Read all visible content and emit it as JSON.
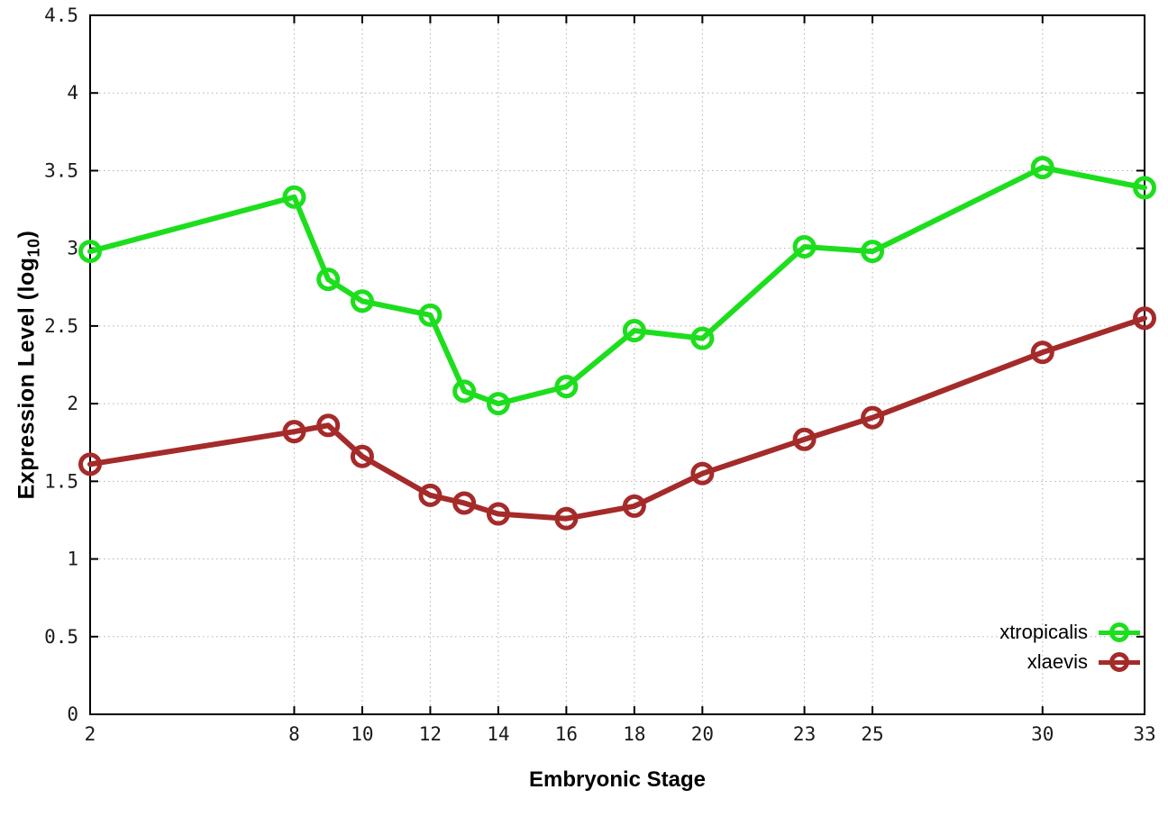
{
  "chart_data": {
    "type": "line",
    "title": "",
    "xlabel": "Embryonic Stage",
    "ylabel": "Expression Level (log10)",
    "ylabel_parts": {
      "base": "Expression Level (log",
      "sub": "10",
      "close": ")"
    },
    "xlim": [
      2,
      33
    ],
    "ylim": [
      0,
      4.5
    ],
    "grid": true,
    "legend_position": "bottom-right",
    "x": [
      2,
      8,
      9,
      10,
      12,
      13,
      14,
      16,
      18,
      20,
      23,
      25,
      30,
      33
    ],
    "xtick_labels": [
      "2",
      "8",
      "10",
      "12",
      "14",
      "16",
      "18",
      "20",
      "23",
      "25",
      "30",
      "33"
    ],
    "xtick_values": [
      2,
      8,
      10,
      12,
      14,
      16,
      18,
      20,
      23,
      25,
      30,
      33
    ],
    "ytick_labels": [
      "0",
      "0.5",
      "1",
      "1.5",
      "2",
      "2.5",
      "3",
      "3.5",
      "4",
      "4.5"
    ],
    "ytick_values": [
      0,
      0.5,
      1,
      1.5,
      2,
      2.5,
      3,
      3.5,
      4,
      4.5
    ],
    "series": [
      {
        "name": "xtropicalis",
        "color": "#1dde1d",
        "values": [
          2.98,
          3.33,
          2.8,
          2.66,
          2.57,
          2.08,
          2.0,
          2.11,
          2.47,
          2.42,
          3.01,
          2.98,
          3.52,
          3.39
        ]
      },
      {
        "name": "xlaevis",
        "color": "#a52a2a",
        "values": [
          1.61,
          1.82,
          1.86,
          1.66,
          1.41,
          1.36,
          1.29,
          1.26,
          1.34,
          1.55,
          1.77,
          1.91,
          2.33,
          2.55
        ]
      }
    ],
    "style": {
      "grid_color": "#b0b0b0",
      "axis_color": "#000000",
      "tick_label_color": "#1a1a1a",
      "background": "#ffffff"
    }
  }
}
